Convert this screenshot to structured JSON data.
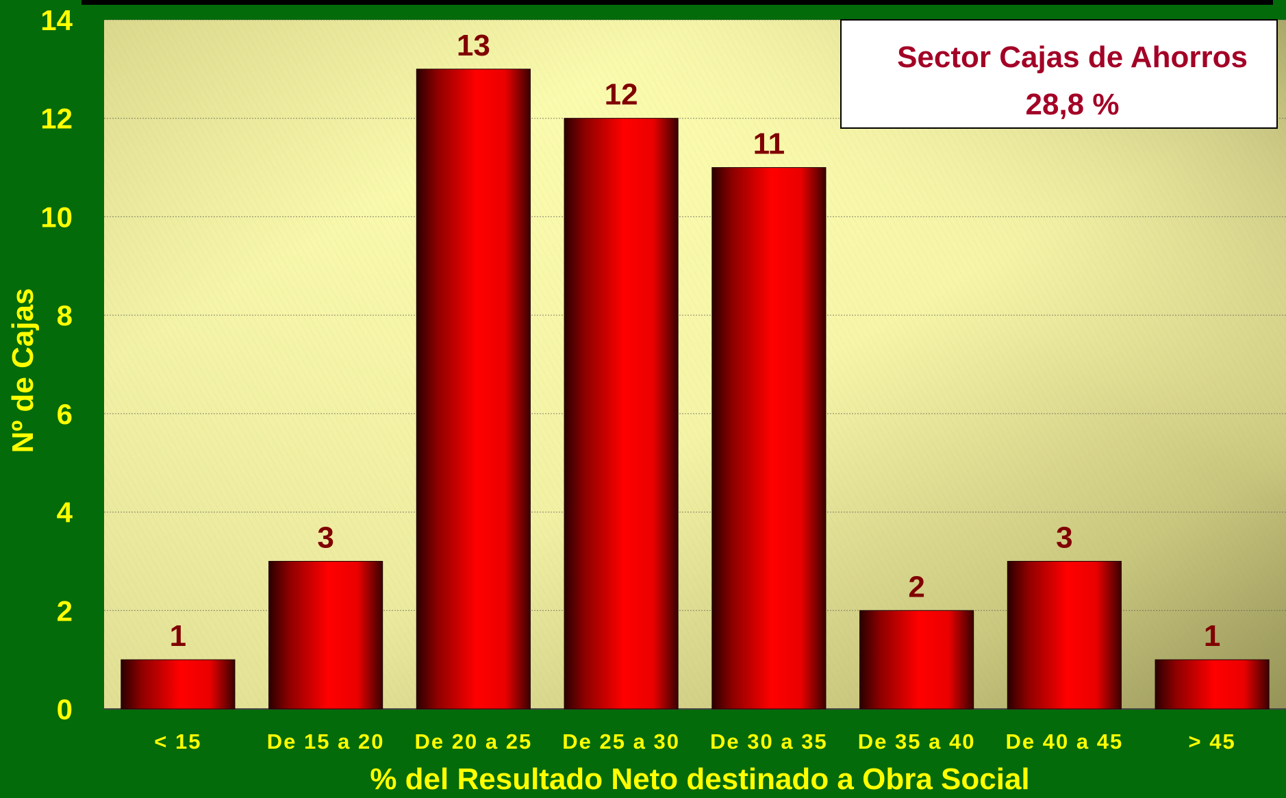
{
  "chart_data": {
    "type": "bar",
    "categories": [
      "< 15",
      "De 15 a 20",
      "De 20 a 25",
      "De 25 a 30",
      "De 30 a 35",
      "De 35 a 40",
      "De 40 a 45",
      "> 45"
    ],
    "values": [
      1,
      3,
      13,
      12,
      11,
      2,
      3,
      1
    ],
    "data_labels": [
      "1",
      "3",
      "13",
      "12",
      "11",
      "2",
      "3",
      "1"
    ],
    "title": "",
    "xlabel": "% del Resultado Neto destinado a Obra Social",
    "ylabel": "Nº de Cajas",
    "ylim": [
      0,
      14
    ],
    "yticks": [
      "0",
      "2",
      "4",
      "6",
      "8",
      "10",
      "12",
      "14"
    ],
    "grid": true,
    "legend_placement": "top-right",
    "annotation": {
      "line1": "Sector Cajas de Ahorros",
      "line2": "28,8 %"
    },
    "colors": {
      "background": "#046b0a",
      "plot_area_light": "#fbfbae",
      "plot_area_dark": "#8e8c52",
      "bar": "#ff0000",
      "bar_shadow": "#2a0000",
      "tick_labels": "#ffff00",
      "value_labels": "#800000",
      "annotation_text": "#a30026"
    }
  }
}
